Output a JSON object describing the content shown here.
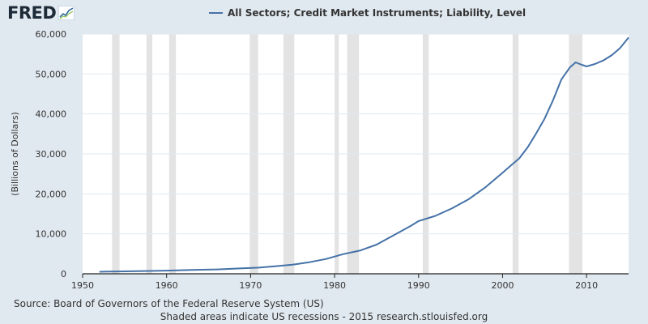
{
  "header": {
    "logo_text": "FRED",
    "logo_icon": "line-chart-icon"
  },
  "chart_data": {
    "type": "line",
    "title": "All Sectors; Credit Market Instruments; Liability, Level",
    "xlabel": "",
    "ylabel": "(Billions of Dollars)",
    "xlim": [
      1950,
      2015
    ],
    "ylim": [
      0,
      60000
    ],
    "grid": true,
    "legend": "top",
    "x_ticks": [
      1950,
      1960,
      1970,
      1980,
      1990,
      2000,
      2010
    ],
    "y_ticks": [
      0,
      10000,
      20000,
      30000,
      40000,
      50000,
      60000
    ],
    "x_tick_labels": [
      "1950",
      "1960",
      "1970",
      "1980",
      "1990",
      "2000",
      "2010"
    ],
    "y_tick_labels": [
      "0",
      "10,000",
      "20,000",
      "30,000",
      "40,000",
      "50,000",
      "60,000"
    ],
    "colors": {
      "line": "#4572a7",
      "recession": "#e3e3e3",
      "grid": "#e1e9f0",
      "background": "#ffffff"
    },
    "recessions": [
      [
        1953.5,
        1954.4
      ],
      [
        1957.6,
        1958.3
      ],
      [
        1960.3,
        1961.1
      ],
      [
        1969.9,
        1970.9
      ],
      [
        1973.9,
        1975.2
      ],
      [
        1980.0,
        1980.5
      ],
      [
        1981.5,
        1982.9
      ],
      [
        1990.5,
        1991.2
      ],
      [
        2001.2,
        2001.9
      ],
      [
        2007.9,
        2009.5
      ]
    ],
    "series": [
      {
        "name": "All Sectors; Credit Market Instruments; Liability, Level",
        "x": [
          1952,
          1955,
          1958,
          1960,
          1963,
          1966,
          1969,
          1971,
          1973,
          1975,
          1977,
          1979,
          1981,
          1983,
          1985,
          1987,
          1989,
          1990,
          1992,
          1994,
          1996,
          1998,
          2000,
          2001,
          2002,
          2003,
          2004,
          2005,
          2006,
          2007,
          2008,
          2008.7,
          2009.3,
          2010,
          2011,
          2012,
          2013,
          2014,
          2015
        ],
        "values": [
          500,
          600,
          700,
          800,
          950,
          1100,
          1350,
          1550,
          1900,
          2300,
          2900,
          3700,
          4900,
          5800,
          7300,
          9600,
          11900,
          13200,
          14500,
          16400,
          18700,
          21700,
          25300,
          27100,
          28900,
          31700,
          35100,
          38800,
          43400,
          48600,
          51600,
          52900,
          52400,
          51900,
          52500,
          53400,
          54700,
          56500,
          59100
        ]
      }
    ]
  },
  "footer": {
    "source": "Source: Board of Governors of the Federal Reserve System (US)",
    "note": "Shaded areas indicate US recessions - 2015 research.stlouisfed.org"
  }
}
